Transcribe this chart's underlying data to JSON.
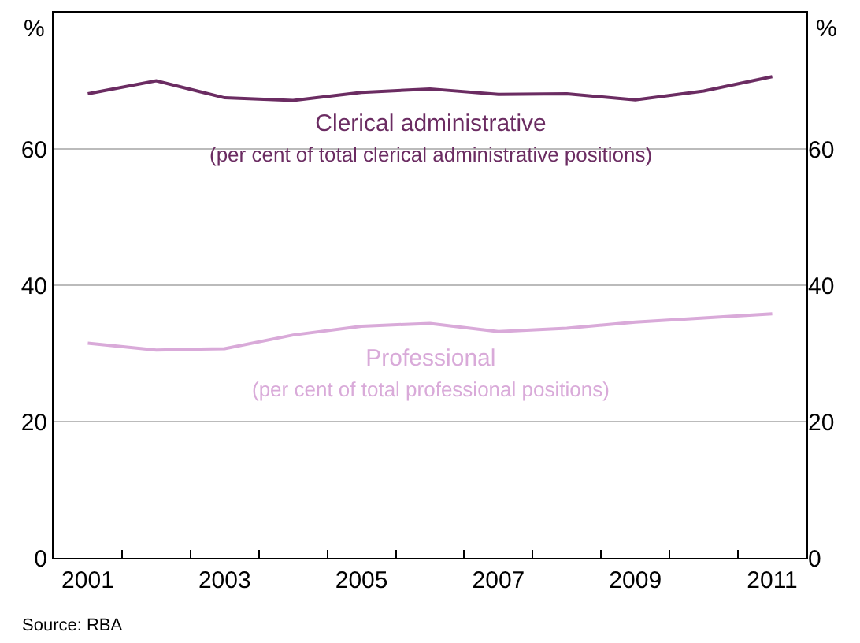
{
  "chart_data": {
    "type": "line",
    "categories": [
      "2001",
      null,
      "2003",
      null,
      "2005",
      null,
      "2007",
      null,
      "2009",
      null,
      "2011"
    ],
    "series": [
      {
        "name": "Clerical administrative\n(per cent of total clerical administrative positions)",
        "color": "#6b2c62",
        "values": [
          68.1,
          70.0,
          67.5,
          67.1,
          68.3,
          68.8,
          68.0,
          68.1,
          67.2,
          68.5,
          70.6
        ]
      },
      {
        "name": "Professional\n(per cent of total professional positions)",
        "color": "#d9aad9",
        "values": [
          31.5,
          30.5,
          30.7,
          32.7,
          34.0,
          34.4,
          33.2,
          33.7,
          34.6,
          35.2,
          35.8
        ]
      }
    ],
    "ylabel": "%",
    "y2label": "%",
    "ylim": [
      0,
      80
    ],
    "yticks": [
      0,
      20,
      40,
      60
    ],
    "y2lim": [
      0,
      80
    ],
    "y2ticks": [
      0,
      20,
      40,
      60
    ],
    "grid": "y",
    "legend": false,
    "marker": "none",
    "line_style": "solid",
    "annotations": [
      "Source: RBA"
    ]
  }
}
